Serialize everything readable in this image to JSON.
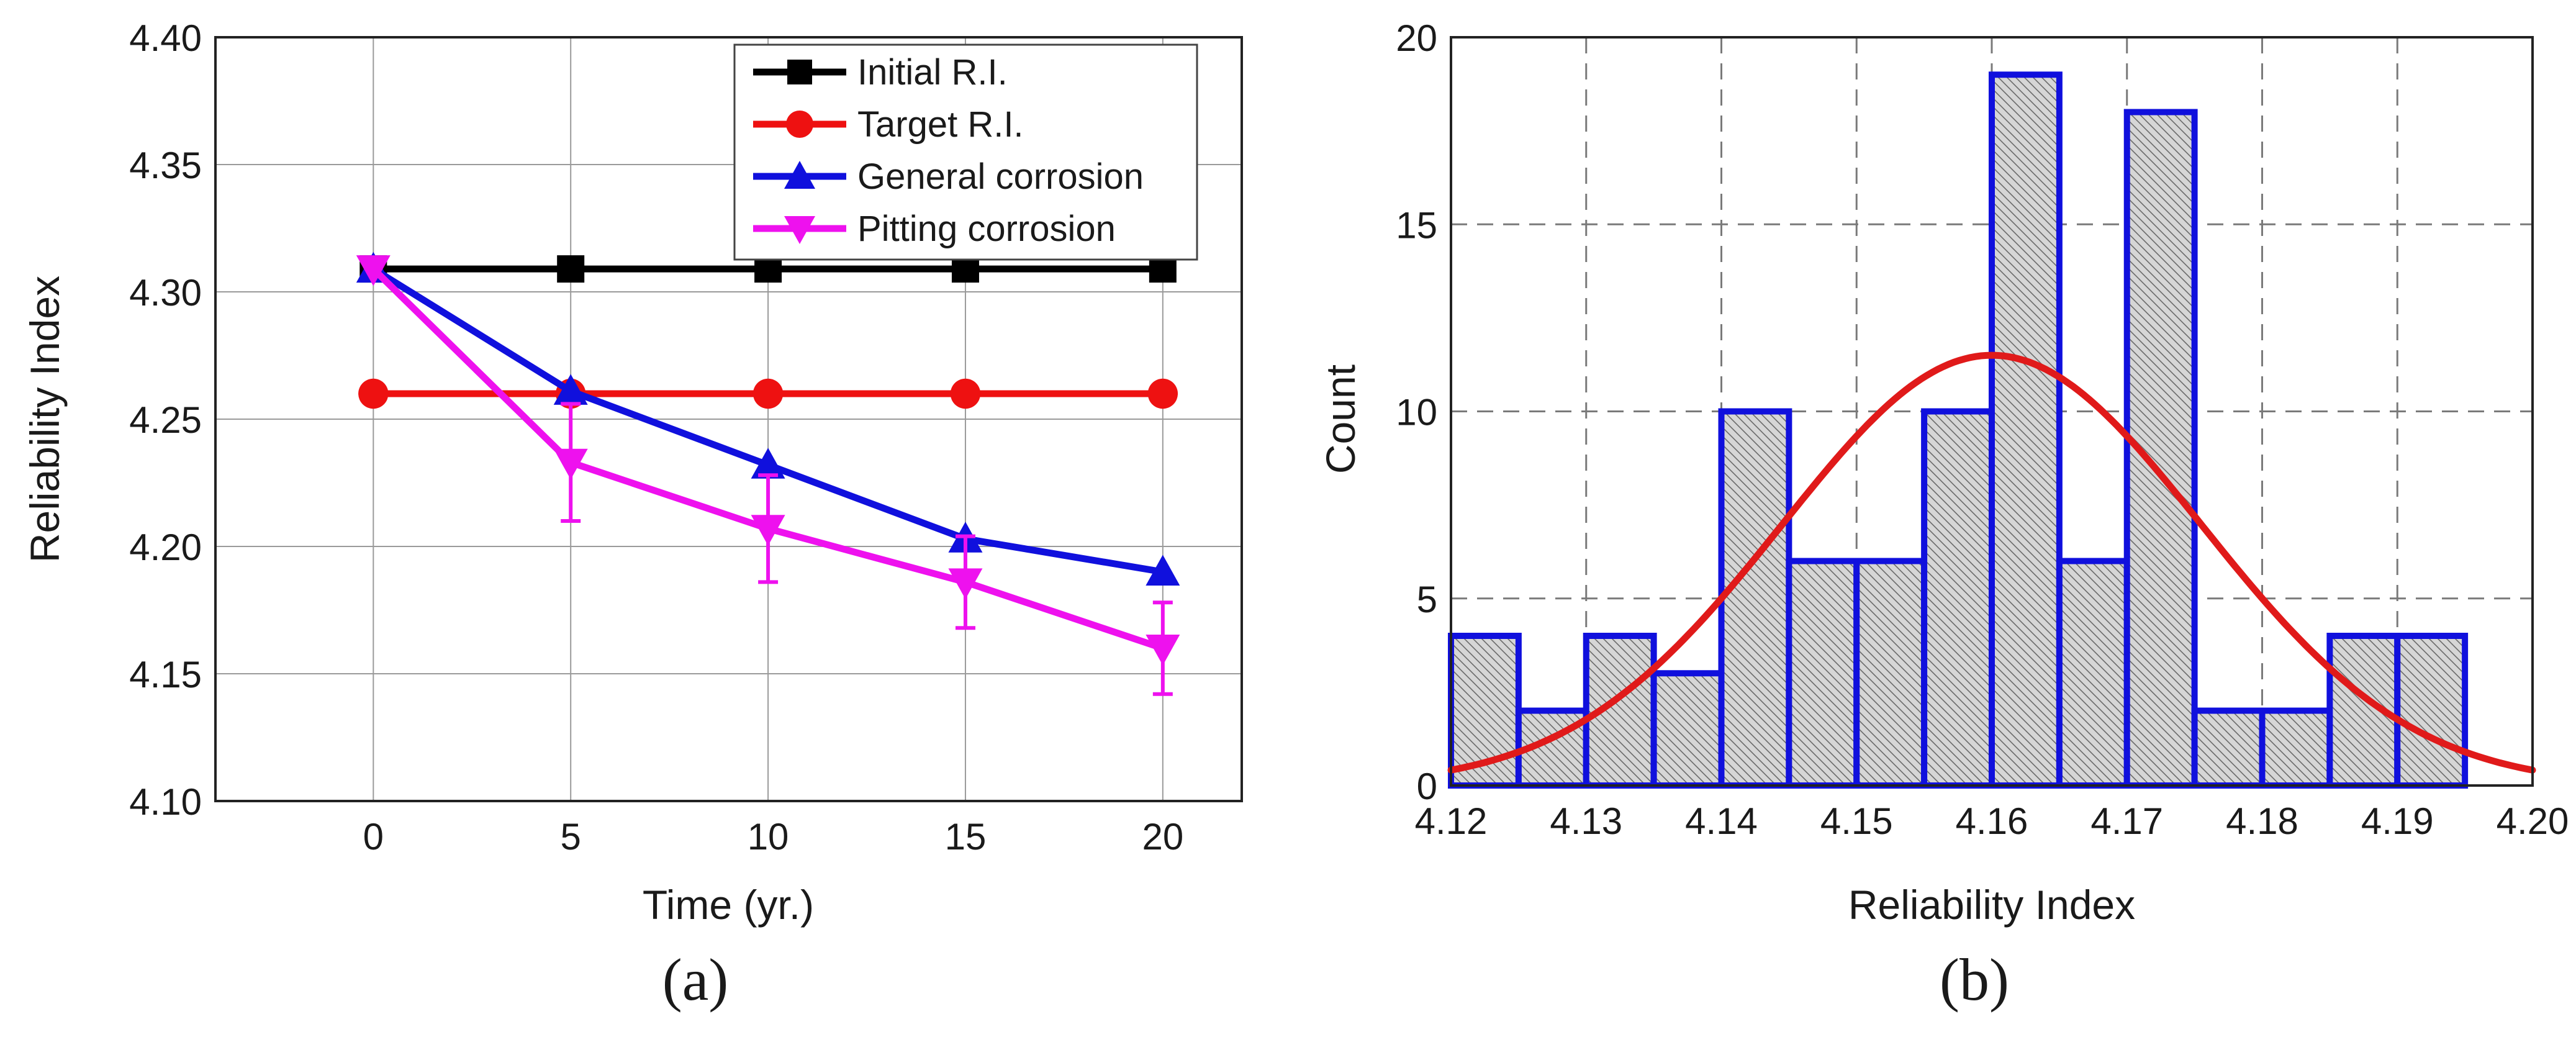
{
  "chart_data": [
    {
      "panel": "(a)",
      "type": "line",
      "xlabel": "Time (yr.)",
      "ylabel": "Reliability Index",
      "xlim": [
        -4,
        22
      ],
      "ylim": [
        4.1,
        4.4
      ],
      "xticks": [
        "0",
        "5",
        "10",
        "15",
        "20"
      ],
      "yticks": [
        "4.10",
        "4.15",
        "4.20",
        "4.25",
        "4.30",
        "4.35",
        "4.40"
      ],
      "grid": true,
      "legend_position": "top-right",
      "x": [
        0,
        5,
        10,
        15,
        20
      ],
      "series": [
        {
          "name": "Initial R.I.",
          "color": "#000000",
          "marker": "square",
          "values": [
            4.309,
            4.309,
            4.309,
            4.309,
            4.309
          ]
        },
        {
          "name": "Target R.I.",
          "color": "#ee1111",
          "marker": "circle",
          "values": [
            4.26,
            4.26,
            4.26,
            4.26,
            4.26
          ]
        },
        {
          "name": "General corrosion",
          "color": "#1010dd",
          "marker": "triangle-up",
          "values": [
            4.309,
            4.261,
            4.232,
            4.203,
            4.19
          ]
        },
        {
          "name": "Pitting corrosion",
          "color": "#ee11ee",
          "marker": "triangle-down",
          "values": [
            4.309,
            4.233,
            4.207,
            4.186,
            4.16
          ],
          "error_low": [
            0,
            0.023,
            0.021,
            0.018,
            0.018
          ],
          "error_high": [
            0,
            0.023,
            0.021,
            0.018,
            0.018
          ]
        }
      ]
    },
    {
      "panel": "(b)",
      "type": "histogram",
      "xlabel": "Reliability Index",
      "ylabel": "Count",
      "xlim": [
        4.12,
        4.2
      ],
      "ylim": [
        0,
        20
      ],
      "xticks": [
        "4.12",
        "4.13",
        "4.14",
        "4.15",
        "4.16",
        "4.17",
        "4.18",
        "4.19",
        "4.20"
      ],
      "yticks": [
        "0",
        "5",
        "10",
        "15",
        "20"
      ],
      "grid": true,
      "bin_width": 0.005,
      "bin_starts": [
        4.12,
        4.125,
        4.13,
        4.135,
        4.14,
        4.145,
        4.15,
        4.155,
        4.16,
        4.165,
        4.17,
        4.175,
        4.18,
        4.185,
        4.19
      ],
      "counts": [
        4,
        2,
        4,
        3,
        10,
        6,
        6,
        10,
        19,
        6,
        18,
        2,
        2,
        4,
        4
      ],
      "bar_color": "#1010dd",
      "fit": {
        "type": "normal",
        "mean": 4.16,
        "peak": 11.5,
        "sd": 0.0155,
        "color": "#e01a1a"
      }
    }
  ]
}
